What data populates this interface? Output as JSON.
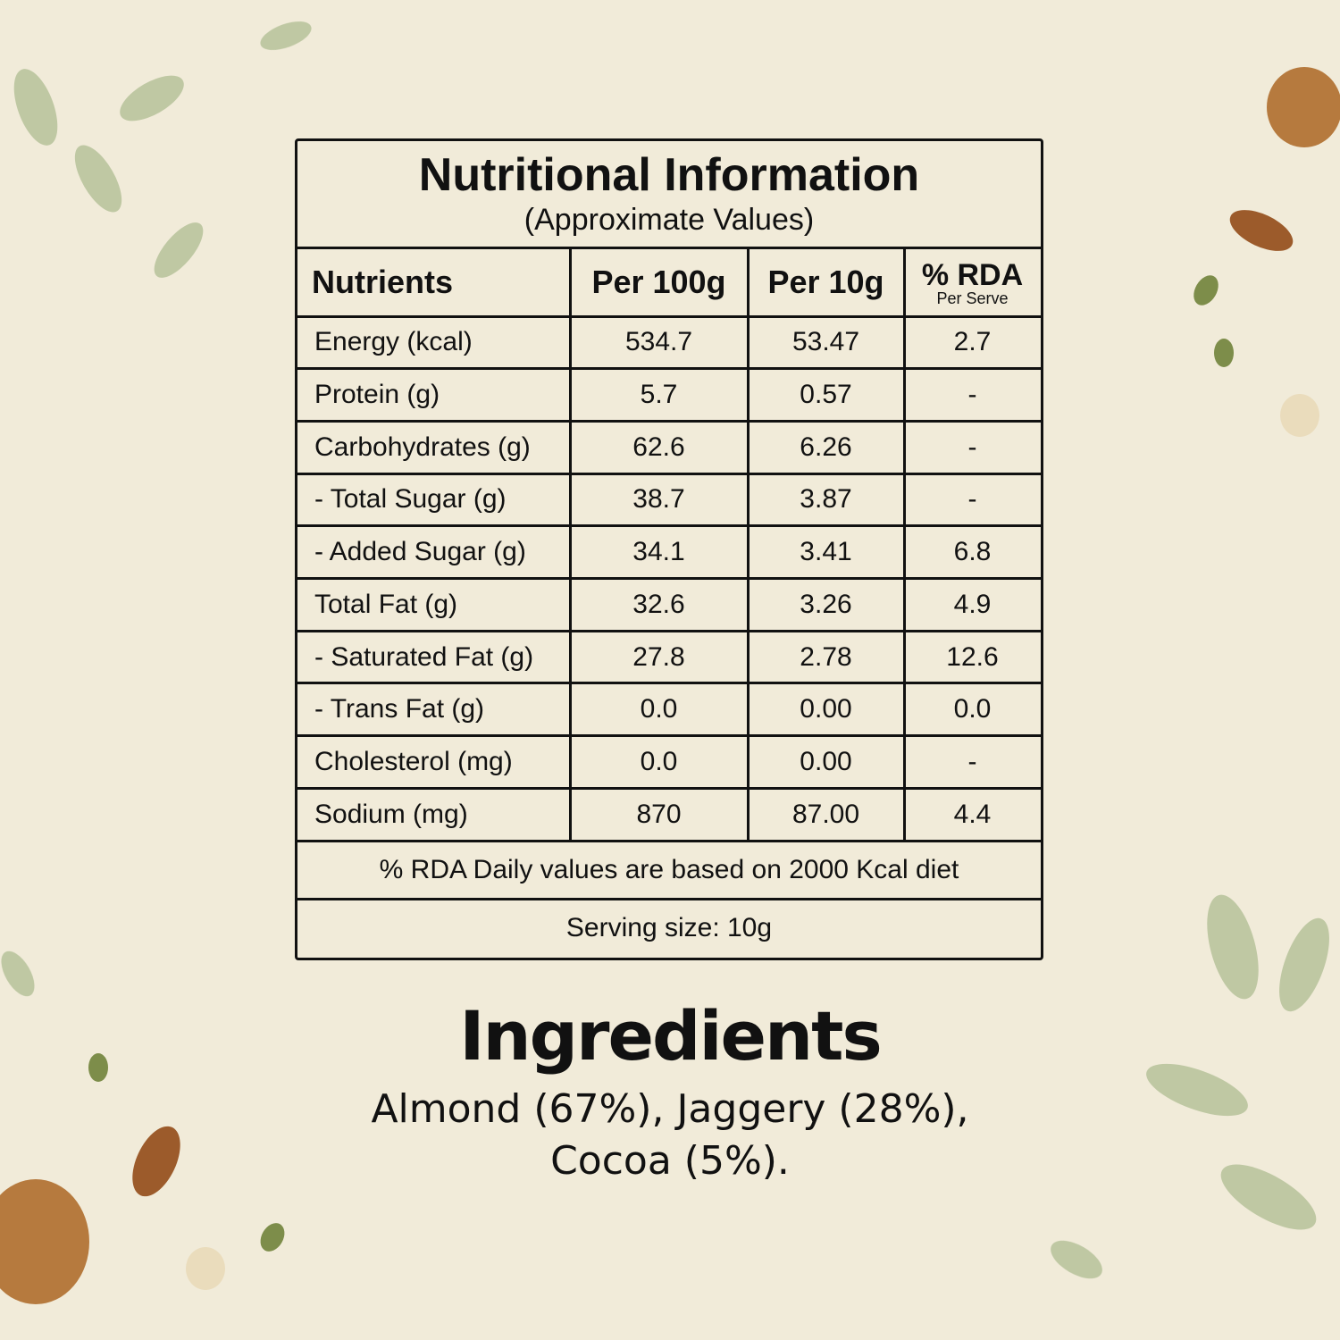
{
  "label": {
    "title": "Nutritional Information",
    "subtitle": "(Approximate Values)",
    "headers": [
      "Nutrients",
      "Per 100g",
      "Per 10g",
      "% RDA"
    ],
    "rda_subheader": "Per Serve",
    "rows": [
      [
        "Energy (kcal)",
        "534.7",
        "53.47",
        "2.7"
      ],
      [
        "Protein (g)",
        "5.7",
        "0.57",
        "-"
      ],
      [
        "Carbohydrates (g)",
        "62.6",
        "6.26",
        "-"
      ],
      [
        "- Total Sugar (g)",
        "38.7",
        "3.87",
        "-"
      ],
      [
        "- Added Sugar (g)",
        "34.1",
        "3.41",
        "6.8"
      ],
      [
        "Total Fat (g)",
        "32.6",
        "3.26",
        "4.9"
      ],
      [
        "- Saturated Fat (g)",
        "27.8",
        "2.78",
        "12.6"
      ],
      [
        "- Trans Fat (g)",
        "0.0",
        "0.00",
        "0.0"
      ],
      [
        "Cholesterol (mg)",
        "0.0",
        "0.00",
        "-"
      ],
      [
        "Sodium (mg)",
        "870",
        "87.00",
        "4.4"
      ]
    ],
    "footnote": "% RDA Daily values are based on 2000 Kcal diet",
    "serving": "Serving size: 10g"
  },
  "ingredients": {
    "title": "Ingredients",
    "lines": [
      "Almond (67%), Jaggery (28%),",
      "Cocoa (5%)."
    ]
  }
}
